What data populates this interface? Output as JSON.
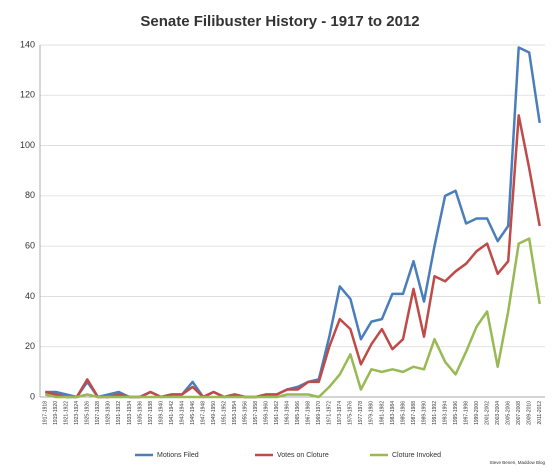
{
  "chart_data": {
    "type": "line",
    "title": "Senate Filibuster History - 1917 to 2012",
    "annotation": "Steve Benen, Maddow Blog",
    "categories": [
      "1917-1918",
      "1919-1920",
      "1921-1922",
      "1923-1924",
      "1925-1926",
      "1927-1928",
      "1929-1930",
      "1931-1932",
      "1933-1934",
      "1935-1936",
      "1937-1938",
      "1939-1940",
      "1941-1942",
      "1943-1944",
      "1945-1946",
      "1947-1948",
      "1949-1950",
      "1951-1952",
      "1953-1954",
      "1955-1956",
      "1957-1958",
      "1959-1960",
      "1961-1962",
      "1963-1964",
      "1965-1966",
      "1967-1968",
      "1969-1970",
      "1971-1972",
      "1973-1974",
      "1975-1976",
      "1977-1978",
      "1979-1980",
      "1981-1982",
      "1983-1984",
      "1985-1986",
      "1987-1988",
      "1989-1990",
      "1991-1992",
      "1993-1994",
      "1995-1996",
      "1997-1998",
      "1999-2000",
      "2001-2002",
      "2003-2004",
      "2005-2006",
      "2007-2008",
      "2009-2010",
      "2011-2012"
    ],
    "series": [
      {
        "name": "Motions Filed",
        "color": "#4a7ebb",
        "values": [
          2,
          2,
          1,
          0,
          6,
          0,
          1,
          2,
          0,
          0,
          2,
          0,
          1,
          1,
          6,
          0,
          2,
          0,
          1,
          0,
          0,
          1,
          1,
          3,
          4,
          6,
          7,
          24,
          44,
          39,
          23,
          30,
          31,
          41,
          41,
          54,
          38,
          60,
          80,
          82,
          69,
          71,
          71,
          62,
          68,
          139,
          137,
          109
        ]
      },
      {
        "name": "Votes on Cloture",
        "color": "#be4b48",
        "values": [
          2,
          1,
          0,
          0,
          7,
          0,
          0,
          1,
          0,
          0,
          2,
          0,
          1,
          1,
          4,
          0,
          2,
          0,
          1,
          0,
          0,
          1,
          1,
          3,
          3,
          6,
          6,
          20,
          31,
          27,
          13,
          21,
          27,
          19,
          23,
          43,
          24,
          48,
          46,
          50,
          53,
          58,
          61,
          49,
          54,
          112,
          91,
          68
        ]
      },
      {
        "name": "Cloture Invoked",
        "color": "#98b954",
        "values": [
          1,
          0,
          0,
          0,
          1,
          0,
          0,
          0,
          0,
          0,
          0,
          0,
          0,
          0,
          0,
          0,
          0,
          0,
          0,
          0,
          0,
          0,
          0,
          1,
          1,
          1,
          0,
          4,
          9,
          17,
          3,
          11,
          10,
          11,
          10,
          12,
          11,
          23,
          14,
          9,
          18,
          28,
          34,
          12,
          34,
          61,
          63,
          37
        ]
      }
    ],
    "ylim": [
      0,
      140
    ],
    "yticks": [
      0,
      20,
      40,
      60,
      80,
      100,
      120,
      140
    ],
    "grid": true,
    "legend": "bottom"
  }
}
